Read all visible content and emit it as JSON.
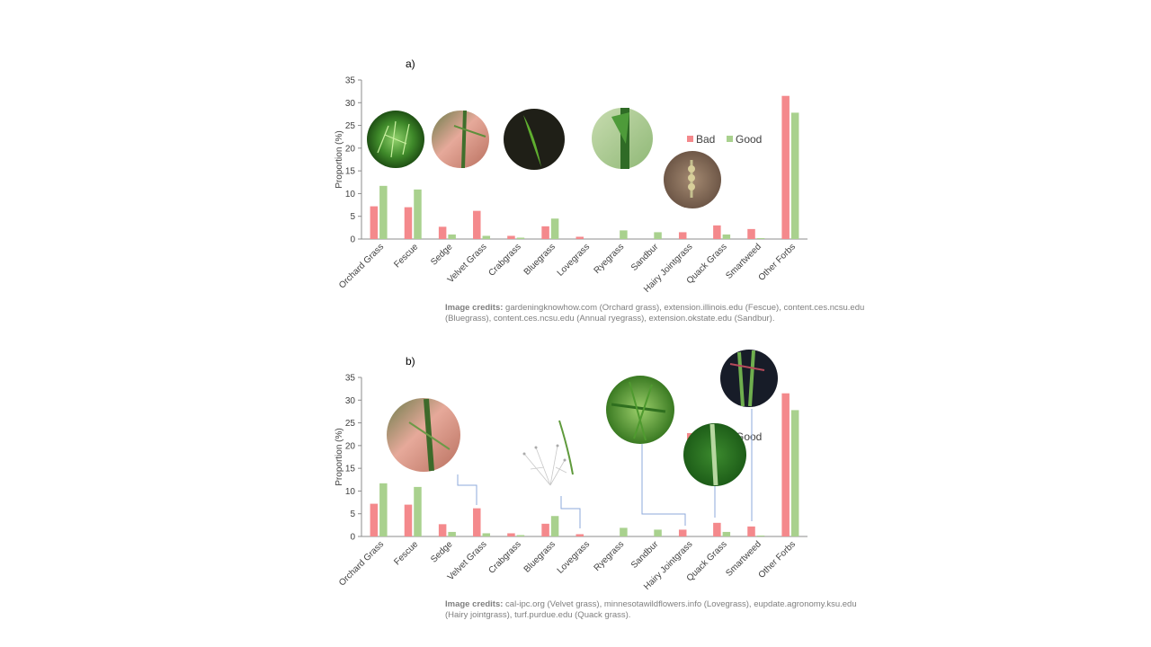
{
  "panels": [
    {
      "label": "a)",
      "credits_label": "Image credits:",
      "credits_text": " gardeningknowhow.com (Orchard grass), extension.illinois.edu (Fescue), content.ces.ncsu.edu (Bluegrass), content.ces.ncsu.edu (Annual ryegrass), extension.okstate.edu (Sandbur)."
    },
    {
      "label": "b)",
      "credits_label": "Image credits:",
      "credits_text": " cal-ipc.org (Velvet grass), minnesotawildflowers.info (Lovegrass), eupdate.agronomy.ksu.edu (Hairy jointgrass), turf.purdue.edu (Quack grass)."
    }
  ],
  "colors": {
    "bad": "#f4898c",
    "good": "#a9d18e",
    "axis": "#8c8c8c",
    "callout": "#8eaadb"
  },
  "chart_data": [
    {
      "type": "bar",
      "categories": [
        "Orchard Grass",
        "Fescue",
        "Sedge",
        "Velvet Grass",
        "Crabgrass",
        "Bluegrass",
        "Lovegrass",
        "Ryegrass",
        "Sandbur",
        "Hairy Jointgrass",
        "Quack Grass",
        "Smartweed",
        "Other Forbs"
      ],
      "series": [
        {
          "name": "Bad",
          "values": [
            7.2,
            7.0,
            2.7,
            6.2,
            0.7,
            2.8,
            0.5,
            0,
            0,
            1.5,
            3.0,
            2.2,
            31.5
          ]
        },
        {
          "name": "Good",
          "values": [
            11.7,
            10.9,
            1.0,
            0.7,
            0.3,
            4.5,
            0,
            1.9,
            1.5,
            0,
            1.0,
            0.2,
            27.8
          ]
        }
      ],
      "ylabel": "Proportion (%)",
      "ylim": [
        0,
        35
      ],
      "yticks": [
        0,
        5,
        10,
        15,
        20,
        25,
        30,
        35
      ],
      "legend_position": "upper-right"
    },
    {
      "type": "bar",
      "categories": [
        "Orchard Grass",
        "Fescue",
        "Sedge",
        "Velvet Grass",
        "Crabgrass",
        "Bluegrass",
        "Lovegrass",
        "Ryegrass",
        "Sandbur",
        "Hairy Jointgrass",
        "Quack Grass",
        "Smartweed",
        "Other Forbs"
      ],
      "series": [
        {
          "name": "Bad",
          "values": [
            7.2,
            7.0,
            2.7,
            6.2,
            0.7,
            2.8,
            0.5,
            0,
            0,
            1.5,
            3.0,
            2.2,
            31.5
          ]
        },
        {
          "name": "Good",
          "values": [
            11.7,
            10.9,
            1.0,
            0.7,
            0.3,
            4.5,
            0,
            1.9,
            1.5,
            0,
            1.0,
            0.2,
            27.8
          ]
        }
      ],
      "ylabel": "Proportion (%)",
      "ylim": [
        0,
        35
      ],
      "yticks": [
        0,
        5,
        10,
        15,
        20,
        25,
        30,
        35
      ],
      "legend_position": "upper-right (partially covered)"
    }
  ]
}
